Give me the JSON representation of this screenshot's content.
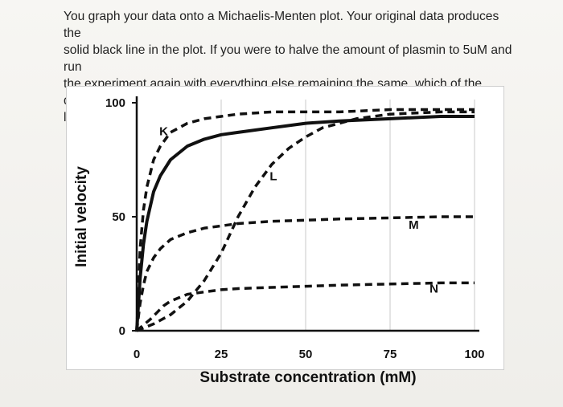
{
  "question": {
    "text": "You graph your data onto a Michaelis-Menten plot. Your original data produces the\nsolid black line in the plot. If you were to halve the amount of plasmin to 5uM and run\nthe experiment again with everything else remaining the same, which of the dashed\nlines in the plot would you expect to get as your data?"
  },
  "chart_data": {
    "type": "line",
    "xlabel": "Substrate concentration (mM)",
    "ylabel": "Initial velocity",
    "xlim": [
      0,
      100
    ],
    "ylim": [
      0,
      100
    ],
    "x_ticks": [
      "0",
      "25",
      "50",
      "75",
      "100"
    ],
    "y_ticks": [
      "0",
      "50",
      "100"
    ],
    "grid": "vertical",
    "series": [
      {
        "style": "solid",
        "x": [
          0,
          1,
          2,
          3,
          5,
          7,
          10,
          15,
          20,
          25,
          30,
          40,
          50,
          60,
          75,
          90,
          100
        ],
        "y": [
          0,
          23,
          38,
          48,
          61,
          68,
          75,
          81,
          84,
          86,
          87,
          89,
          91,
          92,
          93,
          94,
          94
        ]
      },
      {
        "name": "K",
        "style": "dashed",
        "x": [
          0,
          1,
          2,
          3,
          5,
          7,
          10,
          15,
          20,
          25,
          30,
          40,
          50,
          60,
          75,
          90,
          100
        ],
        "y": [
          0,
          36,
          53,
          63,
          75,
          81,
          87,
          91,
          93,
          94,
          95,
          96,
          96,
          96,
          97,
          97,
          97
        ]
      },
      {
        "name": "L",
        "style": "dashed",
        "x": [
          0,
          5,
          10,
          15,
          20,
          25,
          30,
          35,
          40,
          45,
          50,
          55,
          60,
          65,
          75,
          90,
          100
        ],
        "y": [
          0,
          3,
          7,
          13,
          22,
          34,
          50,
          63,
          73,
          80,
          85,
          89,
          91,
          93,
          95,
          96,
          96
        ]
      },
      {
        "name": "M",
        "style": "dashed",
        "x": [
          0,
          1,
          2,
          3,
          5,
          7,
          10,
          15,
          20,
          25,
          30,
          40,
          50,
          60,
          75,
          90,
          100
        ],
        "y": [
          0,
          12,
          20,
          26,
          32,
          36,
          40,
          43,
          45,
          46,
          47,
          48,
          48.5,
          49,
          49.5,
          50,
          50
        ]
      },
      {
        "name": "N",
        "style": "dashed",
        "x": [
          0,
          2,
          4,
          6,
          8,
          10,
          15,
          20,
          25,
          30,
          40,
          50,
          60,
          75,
          90,
          100
        ],
        "y": [
          0,
          2.5,
          5,
          8,
          11,
          13,
          16,
          17,
          18,
          18.5,
          19,
          19.5,
          20,
          20.5,
          21,
          21
        ]
      }
    ]
  }
}
